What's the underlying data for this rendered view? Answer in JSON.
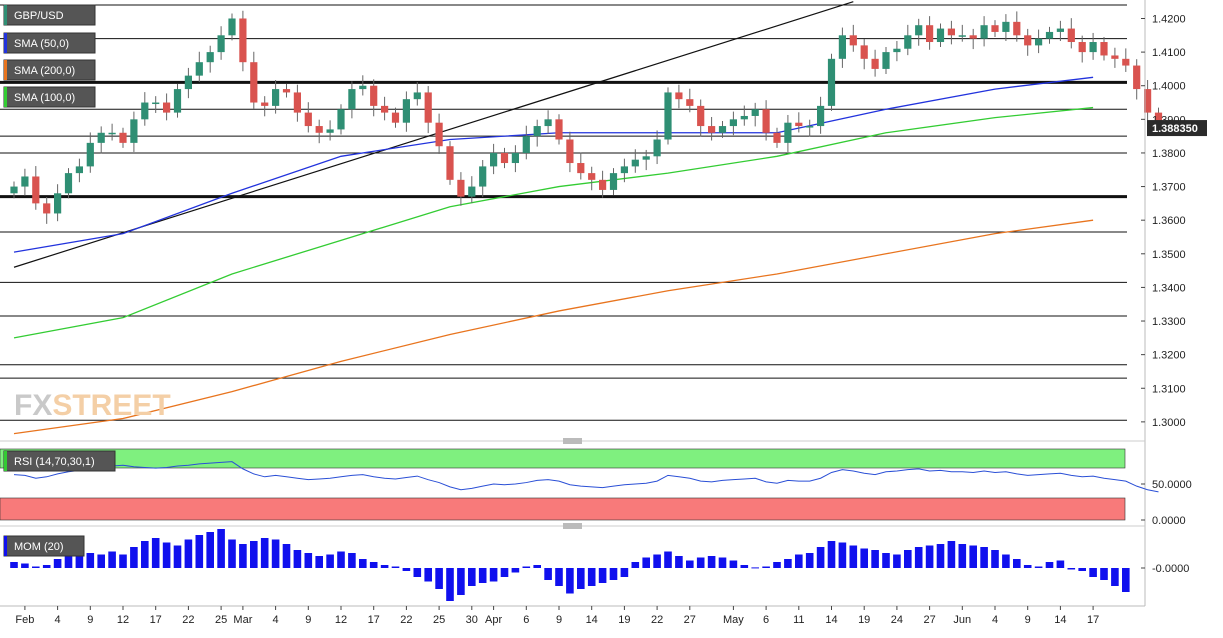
{
  "symbol": "GBP/USD",
  "watermark": {
    "fx": "FX",
    "street": "STREET"
  },
  "indicators": {
    "sma50": {
      "label": "SMA (50,0)",
      "color": "#2233dd"
    },
    "sma200": {
      "label": "SMA (200,0)",
      "color": "#e8741e"
    },
    "sma100": {
      "label": "SMA (100,0)",
      "color": "#33cc33"
    }
  },
  "rsi": {
    "label": "RSI (14,70,30,1)",
    "axis_labels": [
      "50.0000",
      "0.0000"
    ],
    "line_color": "#2a4fd6"
  },
  "mom": {
    "label": "MOM (20)",
    "axis_labels": [
      "-0.0000"
    ],
    "bar_color": "#1010ee"
  },
  "current_price": "1.388350",
  "chart_data": {
    "type": "candlestick",
    "price_axis": {
      "range": [
        1.2955,
        1.4255
      ],
      "ticks": [
        "1.4200",
        "1.4100",
        "1.4000",
        "1.3900",
        "1.3800",
        "1.3700",
        "1.3600",
        "1.3500",
        "1.3400",
        "1.3300",
        "1.3200",
        "1.3100",
        "1.3000"
      ]
    },
    "x_tick_labels": [
      {
        "i": 1,
        "t": "Feb"
      },
      {
        "i": 4,
        "t": "4"
      },
      {
        "i": 7,
        "t": "9"
      },
      {
        "i": 10,
        "t": "12"
      },
      {
        "i": 13,
        "t": "17"
      },
      {
        "i": 16,
        "t": "22"
      },
      {
        "i": 19,
        "t": "25"
      },
      {
        "i": 21,
        "t": "Mar"
      },
      {
        "i": 24,
        "t": "4"
      },
      {
        "i": 27,
        "t": "9"
      },
      {
        "i": 30,
        "t": "12"
      },
      {
        "i": 33,
        "t": "17"
      },
      {
        "i": 36,
        "t": "22"
      },
      {
        "i": 39,
        "t": "25"
      },
      {
        "i": 42,
        "t": "30"
      },
      {
        "i": 44,
        "t": "Apr"
      },
      {
        "i": 47,
        "t": "6"
      },
      {
        "i": 50,
        "t": "9"
      },
      {
        "i": 53,
        "t": "14"
      },
      {
        "i": 56,
        "t": "19"
      },
      {
        "i": 59,
        "t": "22"
      },
      {
        "i": 62,
        "t": "27"
      },
      {
        "i": 66,
        "t": "May"
      },
      {
        "i": 69,
        "t": "6"
      },
      {
        "i": 72,
        "t": "11"
      },
      {
        "i": 75,
        "t": "14"
      },
      {
        "i": 78,
        "t": "19"
      },
      {
        "i": 81,
        "t": "24"
      },
      {
        "i": 84,
        "t": "27"
      },
      {
        "i": 87,
        "t": "Jun"
      },
      {
        "i": 90,
        "t": "4"
      },
      {
        "i": 93,
        "t": "9"
      },
      {
        "i": 96,
        "t": "14"
      },
      {
        "i": 99,
        "t": "17"
      }
    ],
    "closes": [
      1.37,
      1.373,
      1.365,
      1.362,
      1.368,
      1.374,
      1.376,
      1.383,
      1.386,
      1.386,
      1.383,
      1.39,
      1.395,
      1.395,
      1.392,
      1.399,
      1.403,
      1.407,
      1.41,
      1.415,
      1.42,
      1.407,
      1.395,
      1.394,
      1.399,
      1.398,
      1.392,
      1.388,
      1.386,
      1.387,
      1.393,
      1.399,
      1.4,
      1.394,
      1.392,
      1.389,
      1.396,
      1.398,
      1.389,
      1.382,
      1.372,
      1.367,
      1.37,
      1.376,
      1.38,
      1.377,
      1.38,
      1.385,
      1.388,
      1.39,
      1.384,
      1.377,
      1.374,
      1.372,
      1.369,
      1.374,
      1.376,
      1.378,
      1.379,
      1.384,
      1.398,
      1.396,
      1.394,
      1.388,
      1.386,
      1.388,
      1.39,
      1.391,
      1.393,
      1.386,
      1.383,
      1.389,
      1.388,
      1.388,
      1.394,
      1.408,
      1.415,
      1.412,
      1.408,
      1.405,
      1.41,
      1.411,
      1.415,
      1.418,
      1.413,
      1.417,
      1.415,
      1.415,
      1.414,
      1.418,
      1.416,
      1.419,
      1.415,
      1.412,
      1.414,
      1.416,
      1.417,
      1.413,
      1.41,
      1.413,
      1.409,
      1.408,
      1.406,
      1.399,
      1.392,
      1.388
    ],
    "sma50_points": [
      [
        0,
        1.3505
      ],
      [
        10,
        1.356
      ],
      [
        20,
        1.368
      ],
      [
        30,
        1.379
      ],
      [
        40,
        1.384
      ],
      [
        50,
        1.386
      ],
      [
        60,
        1.386
      ],
      [
        70,
        1.386
      ],
      [
        80,
        1.393
      ],
      [
        90,
        1.399
      ],
      [
        99,
        1.4025
      ]
    ],
    "sma100_points": [
      [
        0,
        1.325
      ],
      [
        10,
        1.331
      ],
      [
        20,
        1.344
      ],
      [
        30,
        1.354
      ],
      [
        40,
        1.364
      ],
      [
        50,
        1.37
      ],
      [
        60,
        1.374
      ],
      [
        70,
        1.379
      ],
      [
        80,
        1.386
      ],
      [
        90,
        1.3905
      ],
      [
        99,
        1.3935
      ]
    ],
    "sma200_points": [
      [
        0,
        1.2965
      ],
      [
        10,
        1.301
      ],
      [
        20,
        1.309
      ],
      [
        30,
        1.318
      ],
      [
        40,
        1.326
      ],
      [
        50,
        1.333
      ],
      [
        60,
        1.339
      ],
      [
        70,
        1.344
      ],
      [
        80,
        1.35
      ],
      [
        90,
        1.356
      ],
      [
        99,
        1.36
      ]
    ],
    "horizontal_levels": [
      1.424,
      1.414,
      1.401,
      1.393,
      1.385,
      1.38,
      1.367,
      1.3565,
      1.3415,
      1.3315,
      1.317,
      1.313,
      1.3005
    ],
    "bold_levels": [
      1.401,
      1.367
    ],
    "trendline": [
      [
        0,
        1.346
      ],
      [
        77,
        1.425
      ]
    ],
    "rsi_values": [
      63,
      62,
      58,
      60,
      64,
      67,
      69,
      72,
      74,
      75,
      76,
      74,
      73,
      72,
      73,
      75,
      76,
      78,
      79,
      80,
      81,
      71,
      64,
      60,
      62,
      60,
      58,
      56,
      57,
      58,
      60,
      62,
      63,
      60,
      58,
      57,
      59,
      61,
      56,
      52,
      46,
      42,
      44,
      47,
      50,
      49,
      50,
      52,
      55,
      56,
      54,
      49,
      47,
      46,
      45,
      47,
      49,
      50,
      51,
      54,
      62,
      60,
      58,
      54,
      53,
      55,
      56,
      57,
      58,
      53,
      51,
      55,
      54,
      54,
      58,
      66,
      70,
      68,
      65,
      63,
      67,
      68,
      70,
      71,
      68,
      69,
      67,
      67,
      66,
      68,
      66,
      67,
      64,
      62,
      63,
      64,
      65,
      62,
      60,
      61,
      58,
      56,
      54,
      47,
      42,
      39
    ],
    "mom_values": [
      0.002,
      0.0015,
      0.0005,
      0.001,
      0.003,
      0.0055,
      0.006,
      0.005,
      0.0045,
      0.0055,
      0.0045,
      0.007,
      0.009,
      0.01,
      0.0085,
      0.0075,
      0.0095,
      0.011,
      0.012,
      0.013,
      0.0095,
      0.008,
      0.009,
      0.01,
      0.0095,
      0.008,
      0.006,
      0.005,
      0.004,
      0.0045,
      0.0055,
      0.005,
      0.003,
      0.002,
      0.001,
      0.0005,
      -0.001,
      -0.003,
      -0.0045,
      -0.007,
      -0.011,
      -0.009,
      -0.006,
      -0.005,
      -0.0045,
      -0.003,
      -0.0015,
      0.0005,
      0.001,
      -0.004,
      -0.006,
      -0.0085,
      -0.007,
      -0.006,
      -0.005,
      -0.004,
      -0.003,
      0.002,
      0.0035,
      0.0045,
      0.0055,
      0.004,
      0.0025,
      0.0035,
      0.004,
      0.0035,
      0.0025,
      0.001,
      0.0002,
      0.0005,
      0.002,
      0.003,
      0.0045,
      0.005,
      0.007,
      0.009,
      0.0085,
      0.0075,
      0.0065,
      0.006,
      0.005,
      0.0045,
      0.006,
      0.007,
      0.0075,
      0.008,
      0.009,
      0.008,
      0.0075,
      0.007,
      0.006,
      0.0045,
      0.003,
      0.001,
      0.0005,
      0.002,
      0.0025,
      -0.0005,
      -0.001,
      -0.003,
      -0.004,
      -0.006,
      -0.008
    ]
  }
}
